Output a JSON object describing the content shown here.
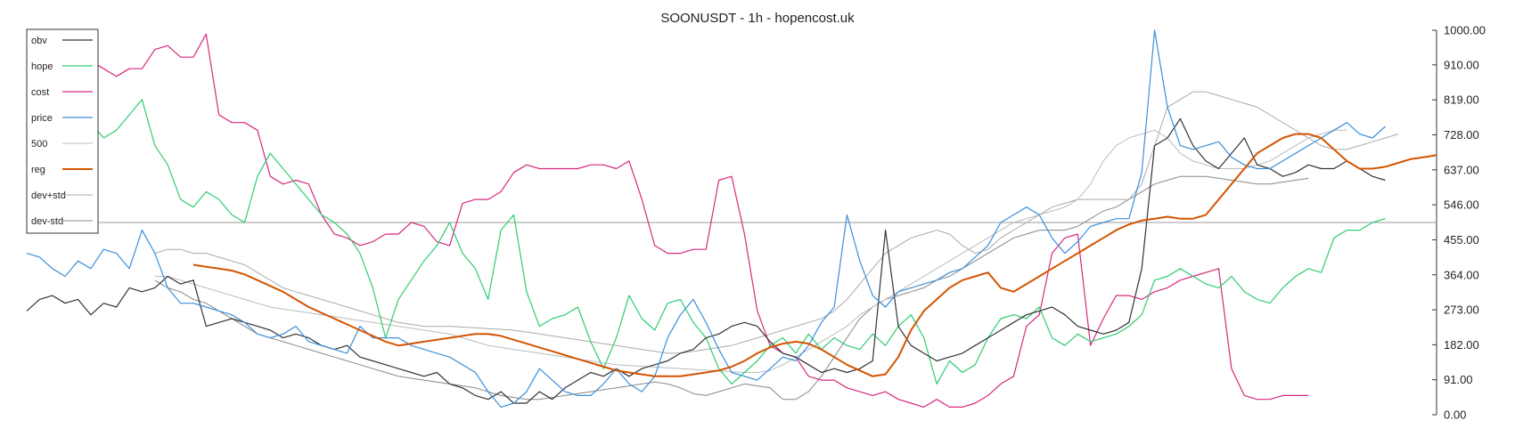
{
  "chart_data": {
    "type": "line",
    "title": "SOONUSDT - 1h - hopencost.uk",
    "xlabel": "",
    "ylabel": "",
    "ylim": [
      0,
      1000
    ],
    "yticks": [
      "1000.00",
      "910.00",
      "819.00",
      "728.00",
      "637.00",
      "546.00",
      "455.00",
      "364.00",
      "273.00",
      "182.00",
      "91.00",
      "0.00"
    ],
    "reference_line": 500,
    "grid": false,
    "legend_position": "top-left",
    "series": [
      {
        "name": "obv",
        "color": "#333333",
        "width": 1.2,
        "start": 0,
        "values": [
          270,
          300,
          310,
          290,
          300,
          260,
          290,
          280,
          330,
          320,
          330,
          360,
          340,
          350,
          230,
          240,
          250,
          240,
          230,
          220,
          200,
          210,
          200,
          180,
          170,
          180,
          150,
          140,
          130,
          120,
          110,
          100,
          110,
          80,
          70,
          50,
          40,
          60,
          30,
          30,
          60,
          40,
          70,
          90,
          110,
          100,
          120,
          100,
          120,
          130,
          140,
          160,
          170,
          200,
          210,
          230,
          240,
          230,
          190,
          160,
          150,
          130,
          110,
          120,
          110,
          120,
          140,
          480,
          230,
          180,
          160,
          140,
          150,
          160,
          180,
          200,
          220,
          240,
          260,
          270,
          280,
          260,
          230,
          220,
          210,
          220,
          240,
          380,
          700,
          720,
          770,
          700,
          660,
          640,
          680,
          720,
          650,
          640,
          620,
          630,
          650,
          640,
          640,
          660,
          640,
          620,
          610
        ]
      },
      {
        "name": "hope",
        "color": "#2ecc71",
        "width": 1.2,
        "start": 0,
        "values": [
          880,
          920,
          930,
          910,
          870,
          760,
          720,
          740,
          780,
          820,
          700,
          650,
          560,
          540,
          580,
          560,
          520,
          500,
          620,
          680,
          640,
          600,
          560,
          520,
          500,
          470,
          420,
          330,
          200,
          300,
          350,
          400,
          440,
          500,
          420,
          380,
          300,
          480,
          520,
          320,
          230,
          250,
          260,
          280,
          190,
          120,
          200,
          310,
          250,
          220,
          290,
          300,
          240,
          200,
          120,
          80,
          110,
          140,
          180,
          200,
          160,
          210,
          170,
          200,
          180,
          170,
          210,
          180,
          230,
          260,
          200,
          80,
          140,
          110,
          130,
          200,
          250,
          260,
          250,
          280,
          200,
          180,
          210,
          190,
          200,
          210,
          230,
          260,
          350,
          360,
          380,
          360,
          340,
          330,
          360,
          320,
          300,
          290,
          330,
          360,
          380,
          370,
          460,
          480,
          480,
          500,
          510
        ]
      },
      {
        "name": "cost",
        "color": "#d6287e",
        "width": 1.2,
        "start": 0,
        "values": [
          930,
          920,
          940,
          910,
          930,
          920,
          900,
          880,
          900,
          900,
          950,
          960,
          930,
          930,
          990,
          780,
          760,
          760,
          740,
          620,
          600,
          610,
          600,
          520,
          470,
          460,
          440,
          450,
          470,
          470,
          500,
          490,
          450,
          440,
          550,
          560,
          560,
          580,
          630,
          650,
          640,
          640,
          640,
          640,
          650,
          650,
          640,
          660,
          560,
          440,
          420,
          420,
          430,
          430,
          610,
          620,
          470,
          270,
          180,
          160,
          150,
          100,
          90,
          90,
          70,
          60,
          50,
          60,
          40,
          30,
          20,
          40,
          20,
          20,
          30,
          50,
          80,
          100,
          230,
          260,
          420,
          460,
          470,
          180,
          250,
          310,
          310,
          300,
          320,
          330,
          350,
          360,
          370,
          380,
          120,
          50,
          40,
          40,
          50,
          50,
          50
        ]
      },
      {
        "name": "price",
        "color": "#3a8fd9",
        "width": 1.2,
        "start": 0,
        "values": [
          420,
          410,
          380,
          360,
          400,
          380,
          430,
          420,
          380,
          480,
          420,
          330,
          290,
          290,
          280,
          270,
          260,
          240,
          210,
          200,
          210,
          230,
          190,
          180,
          170,
          160,
          230,
          200,
          200,
          200,
          180,
          170,
          160,
          150,
          130,
          110,
          60,
          20,
          30,
          60,
          120,
          90,
          60,
          50,
          50,
          80,
          120,
          80,
          60,
          100,
          200,
          260,
          300,
          240,
          170,
          110,
          100,
          90,
          120,
          150,
          140,
          180,
          240,
          280,
          520,
          400,
          310,
          280,
          320,
          330,
          340,
          350,
          370,
          380,
          410,
          440,
          500,
          520,
          540,
          520,
          460,
          420,
          450,
          490,
          500,
          510,
          510,
          630,
          1000,
          800,
          700,
          690,
          700,
          710,
          670,
          650,
          640,
          640,
          660,
          680,
          700,
          720,
          740,
          760,
          730,
          720,
          750
        ]
      },
      {
        "name": "500",
        "color": "#bbbbbb",
        "width": 1.0,
        "start": 10,
        "values": [
          360,
          360,
          350,
          340,
          330,
          320,
          310,
          300,
          290,
          280,
          275,
          270,
          265,
          260,
          255,
          250,
          245,
          240,
          235,
          230,
          225,
          220,
          215,
          210,
          200,
          190,
          180,
          175,
          170,
          165,
          160,
          155,
          150,
          145,
          140,
          135,
          130,
          128,
          126,
          124,
          122,
          120,
          118,
          116,
          114,
          112,
          110,
          110,
          115,
          130,
          150,
          170,
          190,
          210,
          230,
          260,
          280,
          300,
          320,
          340,
          360,
          380,
          400,
          420,
          440,
          460,
          480,
          500,
          510,
          520,
          530,
          540,
          560,
          600,
          660,
          700,
          720,
          730,
          740,
          720,
          680,
          660,
          650,
          640,
          640,
          640,
          650,
          660,
          680,
          700,
          720,
          730,
          740,
          740
        ]
      },
      {
        "name": "reg",
        "color": "#d35400",
        "width": 2.0,
        "start": 13,
        "values": [
          390,
          385,
          380,
          375,
          365,
          350,
          335,
          320,
          300,
          280,
          265,
          250,
          235,
          220,
          205,
          190,
          180,
          185,
          190,
          195,
          200,
          205,
          210,
          210,
          205,
          195,
          185,
          175,
          165,
          155,
          145,
          135,
          125,
          115,
          110,
          105,
          100,
          100,
          100,
          105,
          110,
          115,
          125,
          140,
          160,
          175,
          185,
          190,
          185,
          170,
          150,
          130,
          115,
          100,
          105,
          150,
          220,
          270,
          300,
          330,
          350,
          360,
          370,
          330,
          320,
          340,
          360,
          380,
          400,
          420,
          440,
          460,
          480,
          495,
          505,
          510,
          515,
          510,
          510,
          520,
          560,
          600,
          640,
          680,
          700,
          720,
          730,
          730,
          720,
          690,
          660,
          640,
          640,
          645,
          655,
          665,
          670,
          675
        ]
      },
      {
        "name": "dev+std",
        "color": "#aaaaaa",
        "width": 1.0,
        "start": 10,
        "values": [
          420,
          430,
          430,
          420,
          420,
          410,
          400,
          390,
          370,
          350,
          330,
          320,
          310,
          300,
          290,
          280,
          270,
          260,
          250,
          240,
          235,
          230,
          230,
          230,
          228,
          226,
          224,
          222,
          220,
          215,
          210,
          205,
          200,
          195,
          190,
          185,
          180,
          175,
          170,
          165,
          160,
          160,
          165,
          170,
          175,
          180,
          190,
          200,
          210,
          220,
          230,
          240,
          250,
          270,
          300,
          340,
          380,
          420,
          440,
          460,
          470,
          480,
          470,
          440,
          420,
          430,
          460,
          480,
          500,
          520,
          540,
          550,
          560,
          560,
          560,
          560,
          560,
          600,
          700,
          800,
          820,
          840,
          840,
          830,
          820,
          810,
          800,
          780,
          760,
          740,
          720,
          700,
          690,
          690,
          700,
          710,
          720,
          730
        ]
      },
      {
        "name": "dev-std",
        "color": "#888888",
        "width": 1.0,
        "start": 10,
        "values": [
          350,
          330,
          320,
          300,
          290,
          270,
          250,
          230,
          210,
          200,
          190,
          180,
          170,
          160,
          150,
          140,
          130,
          120,
          110,
          100,
          95,
          90,
          85,
          80,
          75,
          70,
          60,
          50,
          45,
          40,
          40,
          45,
          50,
          55,
          60,
          65,
          70,
          75,
          80,
          85,
          80,
          70,
          55,
          50,
          60,
          70,
          80,
          75,
          70,
          40,
          40,
          60,
          100,
          150,
          200,
          250,
          280,
          300,
          310,
          320,
          330,
          350,
          360,
          380,
          400,
          420,
          440,
          460,
          470,
          480,
          480,
          480,
          490,
          510,
          530,
          540,
          560,
          580,
          600,
          610,
          620,
          620,
          620,
          615,
          610,
          605,
          600,
          600,
          605,
          610,
          615
        ]
      }
    ]
  }
}
